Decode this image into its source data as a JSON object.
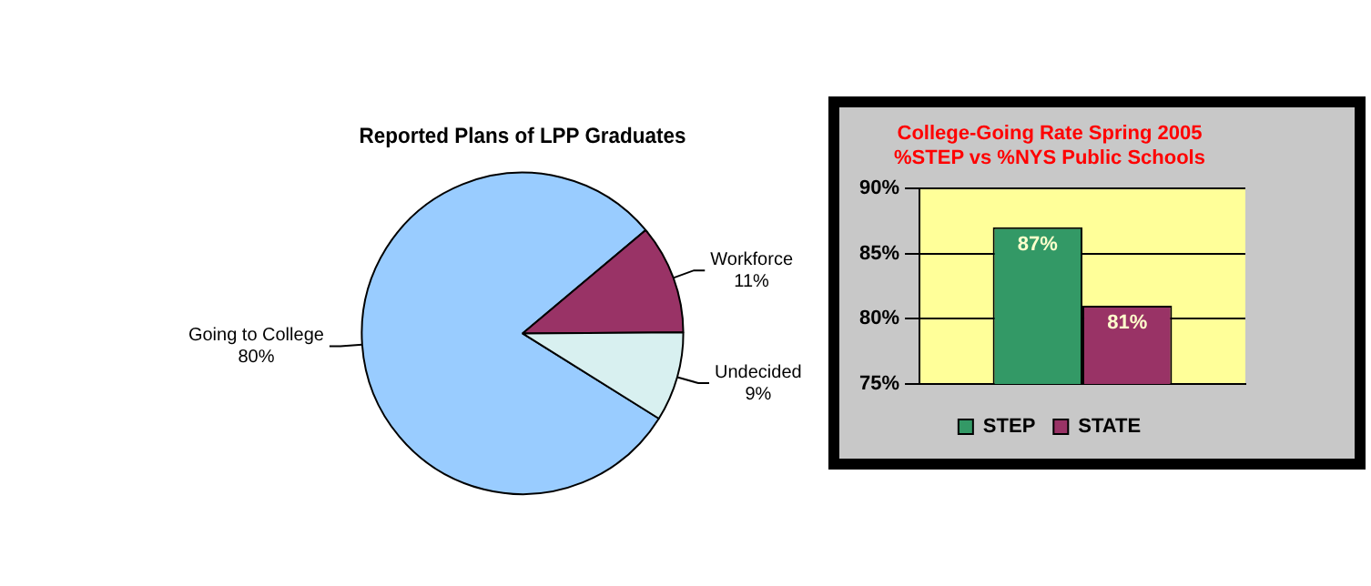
{
  "chart_data": [
    {
      "type": "pie",
      "title": "Reported Plans of LPP Graduates",
      "categories": [
        "Going to College",
        "Workforce",
        "Undecided"
      ],
      "values": [
        80,
        11,
        9
      ],
      "value_labels": [
        "80%",
        "11%",
        "9%"
      ],
      "colors": [
        "#99ccff",
        "#993366",
        "#d8f0f0"
      ],
      "legend": false
    },
    {
      "type": "bar",
      "title": "College-Going Rate Spring 2005\n%STEP vs %NYS Public Schools",
      "categories": [
        null
      ],
      "series": [
        {
          "name": "STEP",
          "color": "#339966",
          "values": [
            87
          ],
          "value_labels": [
            "87%"
          ]
        },
        {
          "name": "STATE",
          "color": "#993366",
          "values": [
            81
          ],
          "value_labels": [
            "81%"
          ]
        }
      ],
      "ylim": [
        75,
        90
      ],
      "yticks": [
        {
          "value": 75,
          "label": "75%"
        },
        {
          "value": 80,
          "label": "80%"
        },
        {
          "value": 85,
          "label": "85%"
        },
        {
          "value": 90,
          "label": "90%"
        }
      ],
      "grid": "y",
      "legend": "bottom"
    }
  ]
}
